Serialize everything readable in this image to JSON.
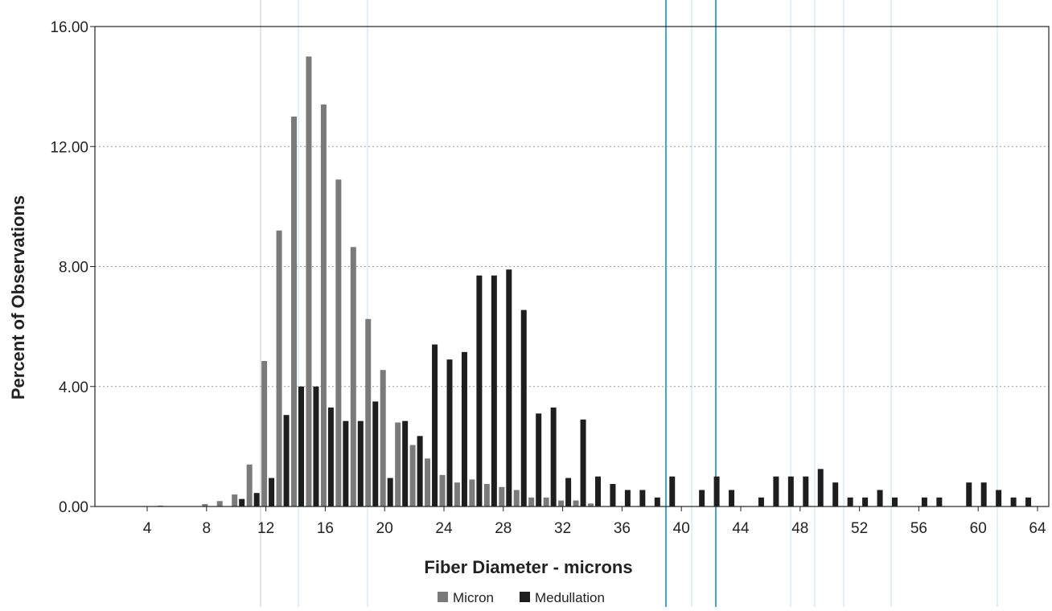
{
  "chart_data": {
    "type": "bar",
    "title": "",
    "xlabel": "Fiber Diameter - microns",
    "ylabel": "Percent of Observations",
    "ylim": [
      0,
      16
    ],
    "y_ticks": [
      "0.00",
      "4.00",
      "8.00",
      "12.00",
      "16.00"
    ],
    "x_tick_labels": [
      "4",
      "8",
      "12",
      "16",
      "20",
      "24",
      "28",
      "32",
      "36",
      "40",
      "44",
      "48",
      "52",
      "56",
      "60",
      "64"
    ],
    "grid": "horizontal dotted",
    "legend_position": "bottom-center",
    "colors": {
      "Micron": "#7a7a7a",
      "Medullation": "#1e1e1e",
      "grid": "#9a9a9a",
      "vline": "#3fa7d6"
    },
    "x": [
      4,
      5,
      6,
      7,
      8,
      9,
      10,
      11,
      12,
      13,
      14,
      15,
      16,
      17,
      18,
      19,
      20,
      21,
      22,
      23,
      24,
      25,
      26,
      27,
      28,
      29,
      30,
      31,
      32,
      33,
      34,
      35,
      36,
      37,
      38,
      39,
      40,
      41,
      42,
      43,
      44,
      45,
      46,
      47,
      48,
      49,
      50,
      51,
      52,
      53,
      54,
      55,
      56,
      57,
      58,
      59,
      60,
      61,
      62,
      63
    ],
    "series": [
      {
        "name": "Micron",
        "values": [
          0,
          0.03,
          0,
          0,
          0.08,
          0.18,
          0.4,
          1.4,
          4.85,
          9.2,
          13,
          15,
          13.4,
          10.9,
          8.65,
          6.25,
          4.55,
          2.8,
          2.05,
          1.6,
          1.05,
          0.8,
          0.9,
          0.75,
          0.65,
          0.55,
          0.3,
          0.3,
          0.2,
          0.2,
          0.1,
          0,
          0,
          0,
          0,
          0,
          0,
          0,
          0,
          0,
          0,
          0,
          0,
          0,
          0,
          0,
          0,
          0,
          0,
          0,
          0,
          0,
          0,
          0,
          0,
          0,
          0,
          0,
          0,
          0
        ]
      },
      {
        "name": "Medullation",
        "values": [
          0,
          0,
          0,
          0,
          0,
          0,
          0.25,
          0.45,
          0.95,
          3.05,
          4,
          4,
          3.3,
          2.85,
          2.85,
          3.5,
          0.95,
          2.85,
          2.35,
          5.4,
          4.9,
          5.15,
          7.7,
          7.7,
          7.9,
          6.55,
          3.1,
          3.3,
          0.95,
          2.9,
          1,
          0.75,
          0.55,
          0.55,
          0.3,
          1,
          0,
          0.55,
          1,
          0.55,
          0,
          0.3,
          1,
          1,
          1,
          1.25,
          0.8,
          0.3,
          0.3,
          0.55,
          0.3,
          0,
          0.3,
          0.3,
          0,
          0.8,
          0.8,
          0.55,
          0.3,
          0.3
        ]
      }
    ]
  }
}
